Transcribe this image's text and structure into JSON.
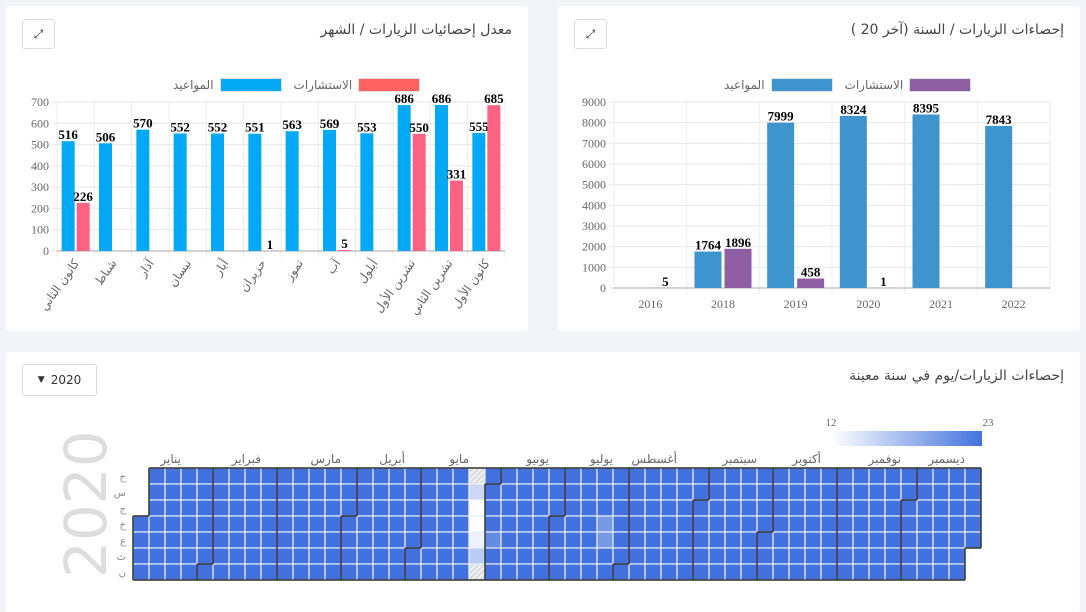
{
  "monthly": {
    "title": "معدل إحصائيات الزيارات / الشهر",
    "expand_icon": "expand-icon",
    "chart_data": {
      "type": "bar",
      "categories": [
        "كانون الثاني",
        "شباط",
        "آذار",
        "نيسان",
        "أيار",
        "حزيران",
        "تموز",
        "آب",
        "أيلول",
        "تشرين الأول",
        "تشرين الثاني",
        "كانون الأول"
      ],
      "ylim": [
        0,
        700
      ],
      "yticks": [
        0,
        100,
        200,
        300,
        400,
        500,
        600,
        700
      ],
      "grid": true,
      "legend": "top",
      "series": [
        {
          "name": "المواعيد",
          "color": "#03a9f4",
          "values": [
            516,
            506,
            570,
            552,
            552,
            551,
            563,
            569,
            553,
            686,
            686,
            555
          ]
        },
        {
          "name": "الاستشارات",
          "color": "#ff6384",
          "values": [
            226,
            null,
            null,
            null,
            null,
            1,
            null,
            5,
            null,
            550,
            331,
            685
          ]
        }
      ]
    }
  },
  "yearly": {
    "title": "إحصاءات الزيارات / السنة (آخر 20 )",
    "expand_icon": "expand-icon",
    "chart_data": {
      "type": "bar",
      "categories": [
        "2016",
        "2018",
        "2019",
        "2020",
        "2021",
        "2022"
      ],
      "ylim": [
        0,
        9000
      ],
      "yticks": [
        0,
        1000,
        2000,
        3000,
        4000,
        5000,
        6000,
        7000,
        8000,
        9000
      ],
      "grid": true,
      "legend": "top",
      "series": [
        {
          "name": "المواعيد",
          "color": "#3e95cd",
          "values": [
            null,
            1764,
            7999,
            8324,
            8395,
            7843
          ]
        },
        {
          "name": "الاستشارات",
          "color": "#8e5ea2",
          "values": [
            5,
            1896,
            458,
            1,
            null,
            null
          ]
        }
      ]
    }
  },
  "daily": {
    "title": "إحصاءات الزيارات/يوم في سنة معينة",
    "year_select": "2020",
    "year_label": "2020",
    "scale_min": "12",
    "scale_max": "23",
    "color_min": "#ffffff",
    "color_max": "#4372de",
    "months": [
      "يناير",
      "فبراير",
      "مارس",
      "أبريل",
      "مايو",
      "يونيو",
      "يوليو",
      "أغسطس",
      "سبتمبر",
      "أكتوبر",
      "نوفمبر",
      "ديسمبر"
    ],
    "weekdays": [
      "ح",
      "س",
      "ج",
      "خ",
      "ع",
      "ث",
      "ن"
    ],
    "default_value": 23,
    "values": {
      "2020-05-24": null,
      "2020-05-25": 15,
      "2020-05-26": 12,
      "2020-05-27": 12,
      "2020-05-28": 13,
      "2020-05-29": 16,
      "2020-05-30": null,
      "2020-06-04": 21,
      "2020-07-22": 20,
      "2020-07-23": 20
    }
  }
}
